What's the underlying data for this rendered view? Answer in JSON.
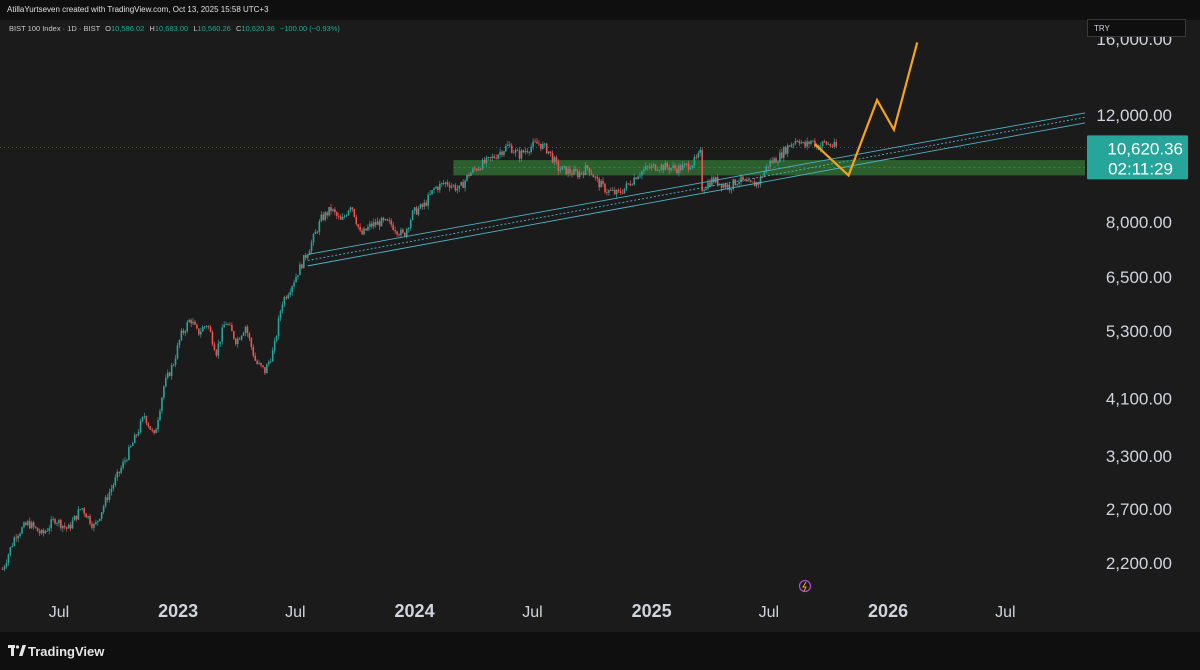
{
  "header": {
    "watermark": "AtillaYurtseven created with TradingView.com, Oct 13, 2025 15:58 UTC+3"
  },
  "legend": {
    "symbol": "BIST 100 Index · 1D · BIST",
    "open_label": "O",
    "open": "10,586.02",
    "high_label": "H",
    "high": "10,683.00",
    "low_label": "L",
    "low": "10,560.26",
    "close_label": "C",
    "close": "10,620.36",
    "change": "−100.00 (−0.93%)"
  },
  "currency": "TRY",
  "price_badge": {
    "price": "10,620.36",
    "countdown": "02:11:29"
  },
  "footer": {
    "brand": "TradingView"
  },
  "colors": {
    "up": "#26a69a",
    "down": "#ef5350",
    "zone": "#2e6b30",
    "projection": "#f7a21b",
    "channel": "#4fb3c9",
    "badge": "#26a69a"
  },
  "chart_data": {
    "type": "candlestick",
    "y_scale": "log",
    "y_ticks": [
      "2,200.00",
      "2,700.00",
      "3,300.00",
      "4,100.00",
      "5,300.00",
      "6,500.00",
      "8,000.00",
      "12,000.00",
      "16,000.00"
    ],
    "y_tick_values": [
      2200,
      2700,
      3300,
      4100,
      5300,
      6500,
      8000,
      12000,
      16000
    ],
    "x_ticks": [
      "Jul",
      "2023",
      "Jul",
      "2024",
      "Jul",
      "2025",
      "Jul",
      "2026",
      "Jul"
    ],
    "x_tick_dates": [
      "2022-07-01",
      "2023-01-01",
      "2023-07-01",
      "2024-01-01",
      "2024-07-01",
      "2025-01-01",
      "2025-07-01",
      "2026-01-01",
      "2026-07-01"
    ],
    "x_range": [
      "2022-04-01",
      "2026-11-01"
    ],
    "y_range": [
      1950,
      17200
    ],
    "last_price": 10620.36,
    "price_path": [
      [
        "2022-04-05",
        2150
      ],
      [
        "2022-04-25",
        2450
      ],
      [
        "2022-05-15",
        2560
      ],
      [
        "2022-06-05",
        2450
      ],
      [
        "2022-06-25",
        2600
      ],
      [
        "2022-07-15",
        2500
      ],
      [
        "2022-08-05",
        2720
      ],
      [
        "2022-08-25",
        2520
      ],
      [
        "2022-09-15",
        2850
      ],
      [
        "2022-10-05",
        3150
      ],
      [
        "2022-10-25",
        3500
      ],
      [
        "2022-11-10",
        3850
      ],
      [
        "2022-11-25",
        3550
      ],
      [
        "2022-12-10",
        4300
      ],
      [
        "2022-12-25",
        4700
      ],
      [
        "2023-01-05",
        5200
      ],
      [
        "2023-01-20",
        5550
      ],
      [
        "2023-01-31",
        5250
      ],
      [
        "2023-02-15",
        5450
      ],
      [
        "2023-03-01",
        4900
      ],
      [
        "2023-03-15",
        5500
      ],
      [
        "2023-04-01",
        5100
      ],
      [
        "2023-04-15",
        5400
      ],
      [
        "2023-05-01",
        4700
      ],
      [
        "2023-05-15",
        4550
      ],
      [
        "2023-05-29",
        4950
      ],
      [
        "2023-06-10",
        5900
      ],
      [
        "2023-06-25",
        6300
      ],
      [
        "2023-07-10",
        6800
      ],
      [
        "2023-07-25",
        7350
      ],
      [
        "2023-08-10",
        8100
      ],
      [
        "2023-08-25",
        8400
      ],
      [
        "2023-09-10",
        8000
      ],
      [
        "2023-09-25",
        8600
      ],
      [
        "2023-10-10",
        7600
      ],
      [
        "2023-10-25",
        7900
      ],
      [
        "2023-11-10",
        8000
      ],
      [
        "2023-11-25",
        7950
      ],
      [
        "2023-12-15",
        7600
      ],
      [
        "2023-12-30",
        8300
      ],
      [
        "2024-01-15",
        8500
      ],
      [
        "2024-02-01",
        9100
      ],
      [
        "2024-02-20",
        9300
      ],
      [
        "2024-03-10",
        9050
      ],
      [
        "2024-03-25",
        9600
      ],
      [
        "2024-04-10",
        9900
      ],
      [
        "2024-04-25",
        10100
      ],
      [
        "2024-05-10",
        10400
      ],
      [
        "2024-05-25",
        10700
      ],
      [
        "2024-06-10",
        10300
      ],
      [
        "2024-06-25",
        10600
      ],
      [
        "2024-07-10",
        10800
      ],
      [
        "2024-07-25",
        10500
      ],
      [
        "2024-08-10",
        9800
      ],
      [
        "2024-08-25",
        9700
      ],
      [
        "2024-09-10",
        9600
      ],
      [
        "2024-09-25",
        9850
      ],
      [
        "2024-10-10",
        9300
      ],
      [
        "2024-10-25",
        9000
      ],
      [
        "2024-11-10",
        8900
      ],
      [
        "2024-11-25",
        9200
      ],
      [
        "2024-12-10",
        9600
      ],
      [
        "2024-12-25",
        9800
      ],
      [
        "2025-01-10",
        9900
      ],
      [
        "2025-01-25",
        9850
      ],
      [
        "2025-02-10",
        9800
      ],
      [
        "2025-02-25",
        9900
      ],
      [
        "2025-03-10",
        10100
      ],
      [
        "2025-03-18",
        10400
      ],
      [
        "2025-03-20",
        9100
      ],
      [
        "2025-04-05",
        9400
      ],
      [
        "2025-04-15",
        9300
      ],
      [
        "2025-05-01",
        9150
      ],
      [
        "2025-05-15",
        9400
      ],
      [
        "2025-06-01",
        9200
      ],
      [
        "2025-06-15",
        9300
      ],
      [
        "2025-07-01",
        10000
      ],
      [
        "2025-07-15",
        10200
      ],
      [
        "2025-08-01",
        10700
      ],
      [
        "2025-08-15",
        11000
      ],
      [
        "2025-08-25",
        10650
      ],
      [
        "2025-09-05",
        10900
      ],
      [
        "2025-09-15",
        10650
      ],
      [
        "2025-09-25",
        10800
      ],
      [
        "2025-10-13",
        10620
      ]
    ],
    "zone": {
      "from": "2024-03-01",
      "to": "2026-11-01",
      "low": 9550,
      "high": 10120
    },
    "channel_lines": [
      {
        "start": [
          "2023-07-20",
          7080
        ],
        "end": [
          "2026-11-01",
          12100
        ]
      },
      {
        "start": [
          "2023-07-20",
          6920
        ],
        "end": [
          "2026-11-01",
          11900
        ]
      },
      {
        "start": [
          "2023-07-20",
          6780
        ],
        "end": [
          "2026-11-01",
          11650
        ]
      }
    ],
    "projection": [
      [
        "2025-09-10",
        10750
      ],
      [
        "2025-11-01",
        9550
      ],
      [
        "2025-12-15",
        12700
      ],
      [
        "2026-01-10",
        11350
      ],
      [
        "2026-02-15",
        15800
      ]
    ]
  }
}
